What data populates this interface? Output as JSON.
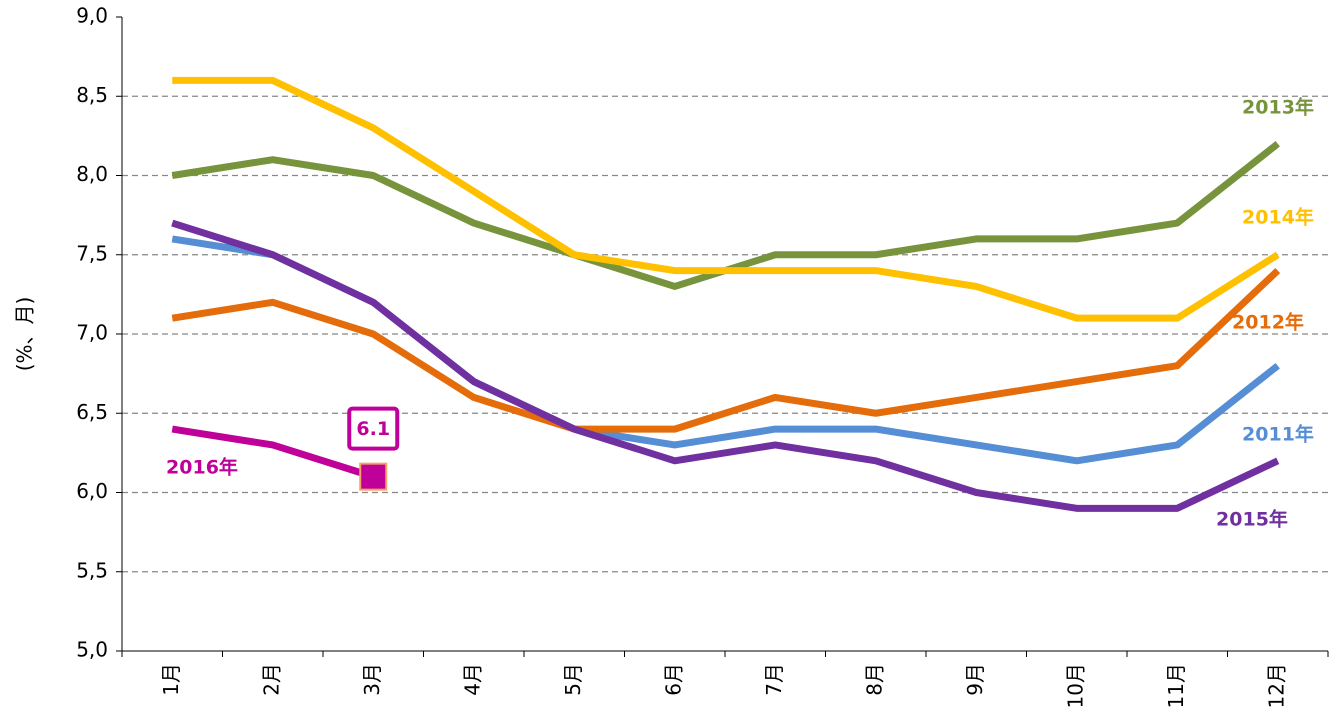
{
  "chart_data": {
    "type": "line",
    "y_label": "(%、月)",
    "categories": [
      "1月",
      "2月",
      "3月",
      "4月",
      "5月",
      "6月",
      "7月",
      "8月",
      "9月",
      "10月",
      "11月",
      "12月"
    ],
    "ylim": [
      5,
      9
    ],
    "yticks": [
      {
        "value": 5,
        "label": "5,0"
      },
      {
        "value": 5.5,
        "label": "5,5"
      },
      {
        "value": 6,
        "label": "6,0"
      },
      {
        "value": 6.5,
        "label": "6,5"
      },
      {
        "value": 7,
        "label": "7,0"
      },
      {
        "value": 7.5,
        "label": "7,5"
      },
      {
        "value": 8,
        "label": "8,0"
      },
      {
        "value": 8.5,
        "label": "8,5"
      },
      {
        "value": 9,
        "label": "9,0"
      }
    ],
    "grid": true,
    "series": [
      {
        "name": "2011年",
        "color": "#558ed5",
        "values": [
          7.6,
          7.5,
          7.2,
          6.7,
          6.4,
          6.3,
          6.4,
          6.4,
          6.3,
          6.2,
          6.3,
          6.8
        ]
      },
      {
        "name": "2013年",
        "color": "#77933c",
        "values": [
          8.0,
          8.1,
          8.0,
          7.7,
          7.5,
          7.3,
          7.5,
          7.5,
          7.6,
          7.6,
          7.7,
          8.2
        ]
      },
      {
        "name": "2014年",
        "color": "#ffc000",
        "values": [
          8.6,
          8.6,
          8.3,
          7.9,
          7.5,
          7.4,
          7.4,
          7.4,
          7.3,
          7.1,
          7.1,
          7.5
        ]
      },
      {
        "name": "2012年",
        "color": "#e46c0a",
        "values": [
          7.1,
          7.2,
          7.0,
          6.6,
          6.4,
          6.4,
          6.6,
          6.5,
          6.6,
          6.7,
          6.8,
          7.4
        ]
      },
      {
        "name": "2015年",
        "color": "#7030a0",
        "values": [
          7.7,
          7.5,
          7.2,
          6.7,
          6.4,
          6.2,
          6.3,
          6.2,
          6.0,
          5.9,
          5.9,
          6.2
        ]
      },
      {
        "name": "2016年",
        "color": "#bf0099",
        "values": [
          6.4,
          6.3,
          6.1,
          null,
          null,
          null,
          null,
          null,
          null,
          null,
          null,
          null
        ]
      }
    ]
  }
}
